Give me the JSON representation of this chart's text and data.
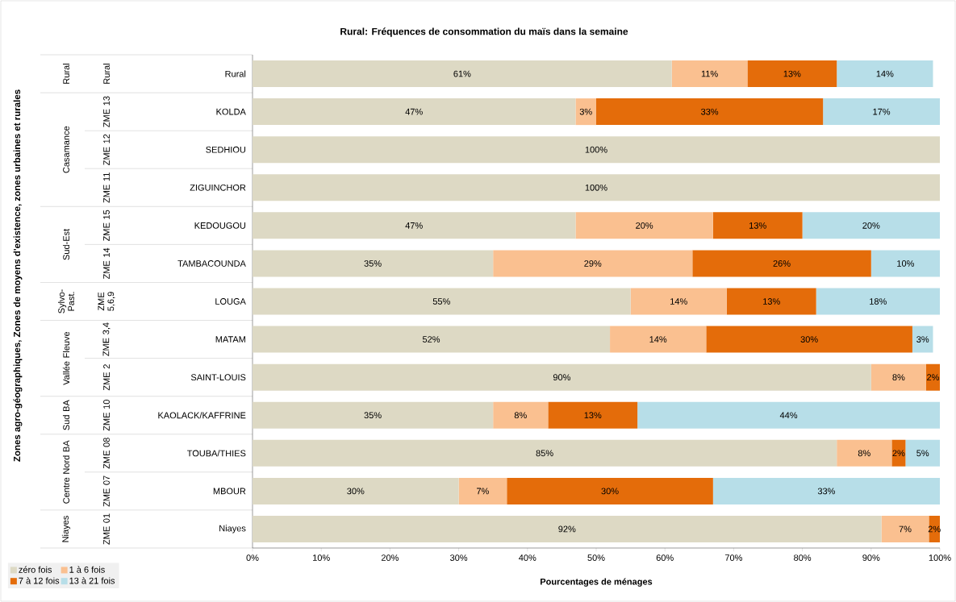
{
  "chart_data": {
    "type": "bar",
    "orientation": "horizontal",
    "stacked": true,
    "title": "Rural: Fréquences de consommation du maïs dans la semaine",
    "xlabel": "Pourcentages de ménages",
    "categories": [
      "Rural",
      "KOLDA",
      "SEDHIOU",
      "ZIGUINCHOR",
      "KEDOUGOU",
      "TAMBACOUNDA",
      "LOUGA",
      "MATAM",
      "SAINT-LOUIS",
      "KAOLACK/KAFFRINE",
      "TOUBA/THIES",
      "MBOUR",
      "Niayes"
    ],
    "series": [
      {
        "name": "zéro fois",
        "color": "#ddd9c4",
        "values": [
          61,
          47,
          100,
          100,
          47,
          35,
          55,
          52,
          90,
          35,
          85,
          30,
          91.5
        ],
        "value_labels": [
          "61%",
          "47%",
          "100%",
          "100%",
          "47%",
          "35%",
          "55%",
          "52%",
          "90%",
          "35%",
          "85%",
          "30%",
          "92%"
        ]
      },
      {
        "name": "1 à 6 fois",
        "color": "#fac090",
        "values": [
          11,
          3,
          0,
          0,
          20,
          29,
          14,
          14,
          8,
          8,
          8,
          7,
          6.9
        ],
        "value_labels": [
          "11%",
          "3%",
          null,
          null,
          "20%",
          "29%",
          "14%",
          "14%",
          "8%",
          "8%",
          "8%",
          "7%",
          "7%"
        ]
      },
      {
        "name": "7 à 12 fois",
        "color": "#e46c0a",
        "values": [
          13,
          33,
          0,
          0,
          13,
          26,
          13,
          30,
          2,
          13,
          2,
          30,
          1.6
        ],
        "value_labels": [
          "13%",
          "33%",
          null,
          null,
          "13%",
          "26%",
          "13%",
          "30%",
          "2%",
          "13%",
          "2%",
          "30%",
          "2%"
        ]
      },
      {
        "name": "13 à 21 fois",
        "color": "#b7dee8",
        "values": [
          14,
          17,
          0,
          0,
          20,
          10,
          18,
          3,
          0,
          44,
          5,
          33,
          0
        ],
        "value_labels": [
          "14%",
          "17%",
          null,
          null,
          "20%",
          "10%",
          "18%",
          "3%",
          null,
          "44%",
          "5%",
          "33%",
          null
        ]
      }
    ],
    "xlim": [
      0,
      100
    ],
    "xticks": [
      {
        "value": 0,
        "label": "0%"
      },
      {
        "value": 10,
        "label": "10%"
      },
      {
        "value": 20,
        "label": "20%"
      },
      {
        "value": 30,
        "label": "30%"
      },
      {
        "value": 40,
        "label": "40%"
      },
      {
        "value": 50,
        "label": "50%"
      },
      {
        "value": 60,
        "label": "60%"
      },
      {
        "value": 70,
        "label": "70%"
      },
      {
        "value": 80,
        "label": "80%"
      },
      {
        "value": 90,
        "label": "90%"
      },
      {
        "value": 100,
        "label": "100%"
      }
    ],
    "legend": "bottom left",
    "annotations": [
      "Rural",
      "Casamance",
      "Sud-Est",
      "Sylvo-Past.",
      "Vallée Fleuve",
      "Sud BA",
      "Centre Nord BA",
      "Niayes",
      "Rural",
      "ZME 13",
      "ZME 12",
      "ZME 11",
      "ZME 15",
      "ZME 14",
      "ZME 5,6,9",
      "ZME 3,4",
      "ZME 2",
      "ZME 10",
      "ZME 08",
      "ZME 07",
      "ZME 01",
      "Zones agro-géographiques, Zones de moyens d'existence, zones urbaines et rurales"
    ]
  }
}
